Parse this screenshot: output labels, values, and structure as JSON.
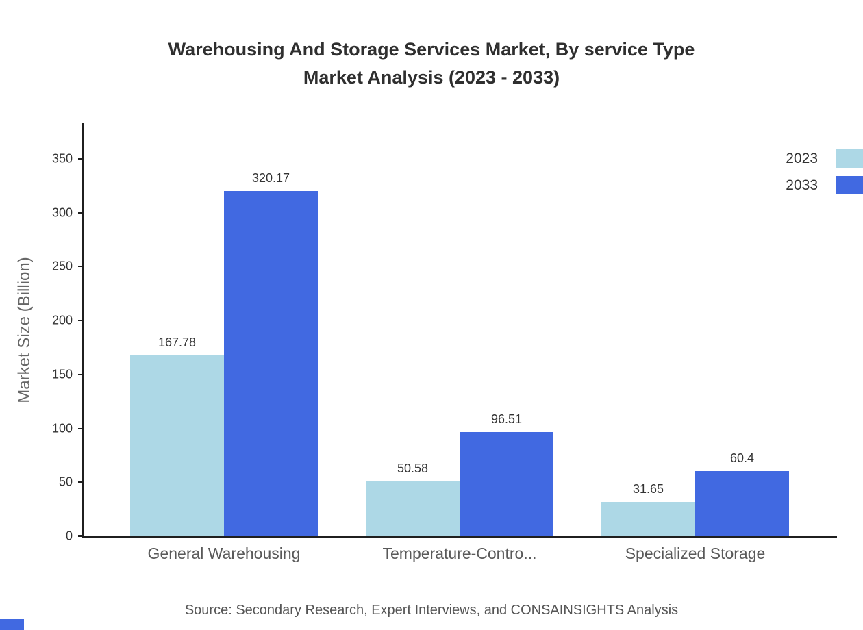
{
  "title": {
    "line1": "Warehousing And Storage Services Market, By service Type",
    "line2": "Market Analysis (2023 - 2033)"
  },
  "source": "Source: Secondary Research, Expert Interviews, and CONSAINSIGHTS Analysis",
  "chart_data": {
    "type": "bar",
    "categories": [
      "General Warehousing",
      "Temperature-Contro...",
      "Specialized Storage"
    ],
    "series": [
      {
        "name": "2023",
        "color": "#add8e6",
        "values": [
          167.78,
          50.58,
          31.65
        ]
      },
      {
        "name": "2033",
        "color": "#4169e1",
        "values": [
          320.17,
          96.51,
          60.4
        ]
      }
    ],
    "value_labels": [
      "167.78",
      "320.17",
      "50.58",
      "96.51",
      "31.65",
      "60.4"
    ],
    "ylabel": "Market Size (Billion)",
    "xlabel": "",
    "yticks": [
      0,
      50,
      100,
      150,
      200,
      250,
      300,
      350
    ],
    "ylim": [
      0,
      383
    ],
    "grid": false,
    "legend_position": "top-right"
  },
  "colors": {
    "axis": "#1f1f1f",
    "title_text": "#2f2f2f",
    "tick_text": "#333333",
    "category_text": "#595959",
    "muted_text": "#666666",
    "accent": "#4169e1"
  }
}
